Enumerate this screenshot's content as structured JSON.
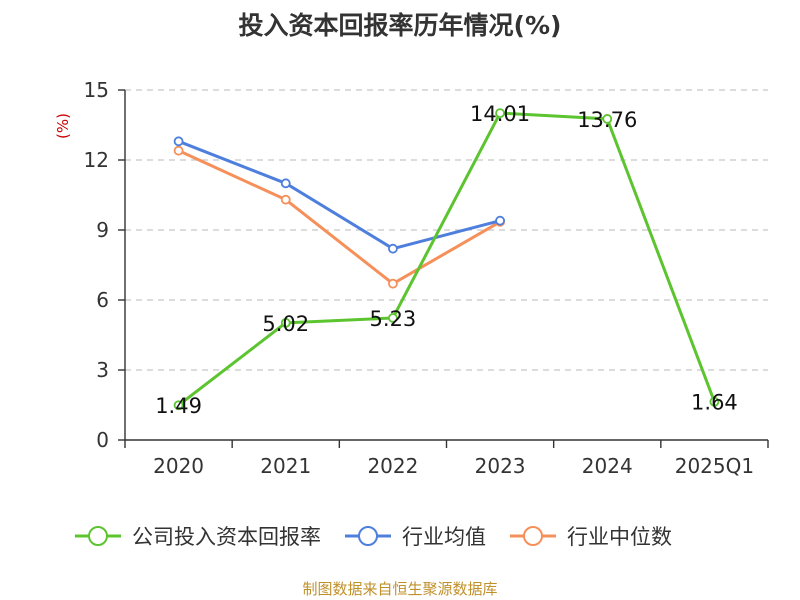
{
  "chart_data": {
    "type": "line",
    "title": "投入资本回报率历年情况(%)",
    "unit_label": "(%)",
    "categories": [
      "2020",
      "2021",
      "2022",
      "2023",
      "2024",
      "2025Q1"
    ],
    "ylim": [
      0,
      15
    ],
    "yticks": [
      0,
      3,
      6,
      9,
      12,
      15
    ],
    "grid": "horizontal dashed",
    "legend_position": "bottom",
    "series": [
      {
        "name": "公司投入资本回报率",
        "color": "#5cc42f",
        "values": [
          1.49,
          5.02,
          5.23,
          14.01,
          13.76,
          1.64
        ],
        "labels": [
          "1.49",
          "5.02",
          "5.23",
          "14.01",
          "13.76",
          "1.64"
        ]
      },
      {
        "name": "行业均值",
        "color": "#4f7fdd",
        "values": [
          12.8,
          11.0,
          8.2,
          9.4,
          null,
          null
        ]
      },
      {
        "name": "行业中位数",
        "color": "#f5905a",
        "values": [
          12.4,
          10.3,
          6.7,
          9.35,
          null,
          null
        ]
      }
    ]
  },
  "footer": {
    "source": "制图数据来自恒生聚源数据库"
  }
}
